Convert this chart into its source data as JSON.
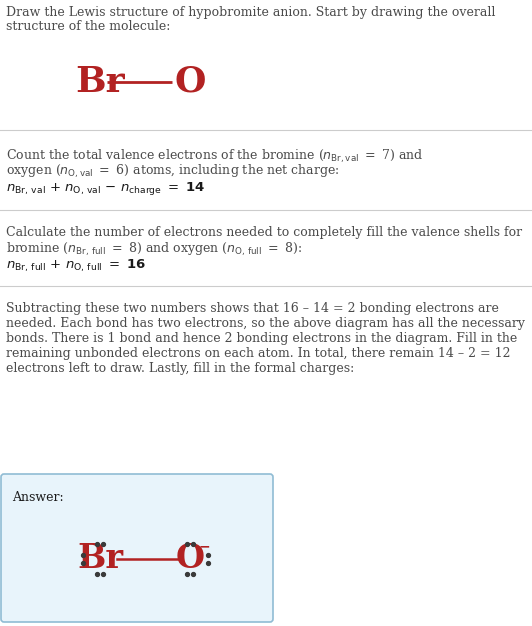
{
  "atom_color": "#b22222",
  "text_color": "#4a4a4a",
  "eq_color": "#1a1a1a",
  "bg_color": "#ffffff",
  "answer_bg": "#e8f4fb",
  "answer_border": "#90bcd4",
  "dot_color": "#3a3a3a",
  "divider_color": "#cccccc",
  "title_line1": "Draw the Lewis structure of hypobromite anion. Start by drawing the overall",
  "title_line2": "structure of the molecule:",
  "s1_line1": "Count the total valence electrons of the bromine (",
  "s1_line1b": " = 7) and",
  "s1_line2a": "oxygen (",
  "s1_line2b": " = 6) atoms, including the net charge:",
  "s2_line1": "Calculate the number of electrons needed to completely fill the valence shells for",
  "s2_line2a": "bromine (",
  "s2_line2b": " = 8) and oxygen (",
  "s2_line2c": " = 8):",
  "s3_line1": "Subtracting these two numbers shows that 16 – 14 = 2 bonding electrons are",
  "s3_line2": "needed. Each bond has two electrons, so the above diagram has all the necessary",
  "s3_line3": "bonds. There is 1 bond and hence 2 bonding electrons in the diagram. Fill in the",
  "s3_line4": "remaining unbonded electrons on each atom. In total, there remain 14 – 2 = 12",
  "s3_line5": "electrons left to draw. Lastly, fill in the formal charges:",
  "answer_label": "Answer:"
}
